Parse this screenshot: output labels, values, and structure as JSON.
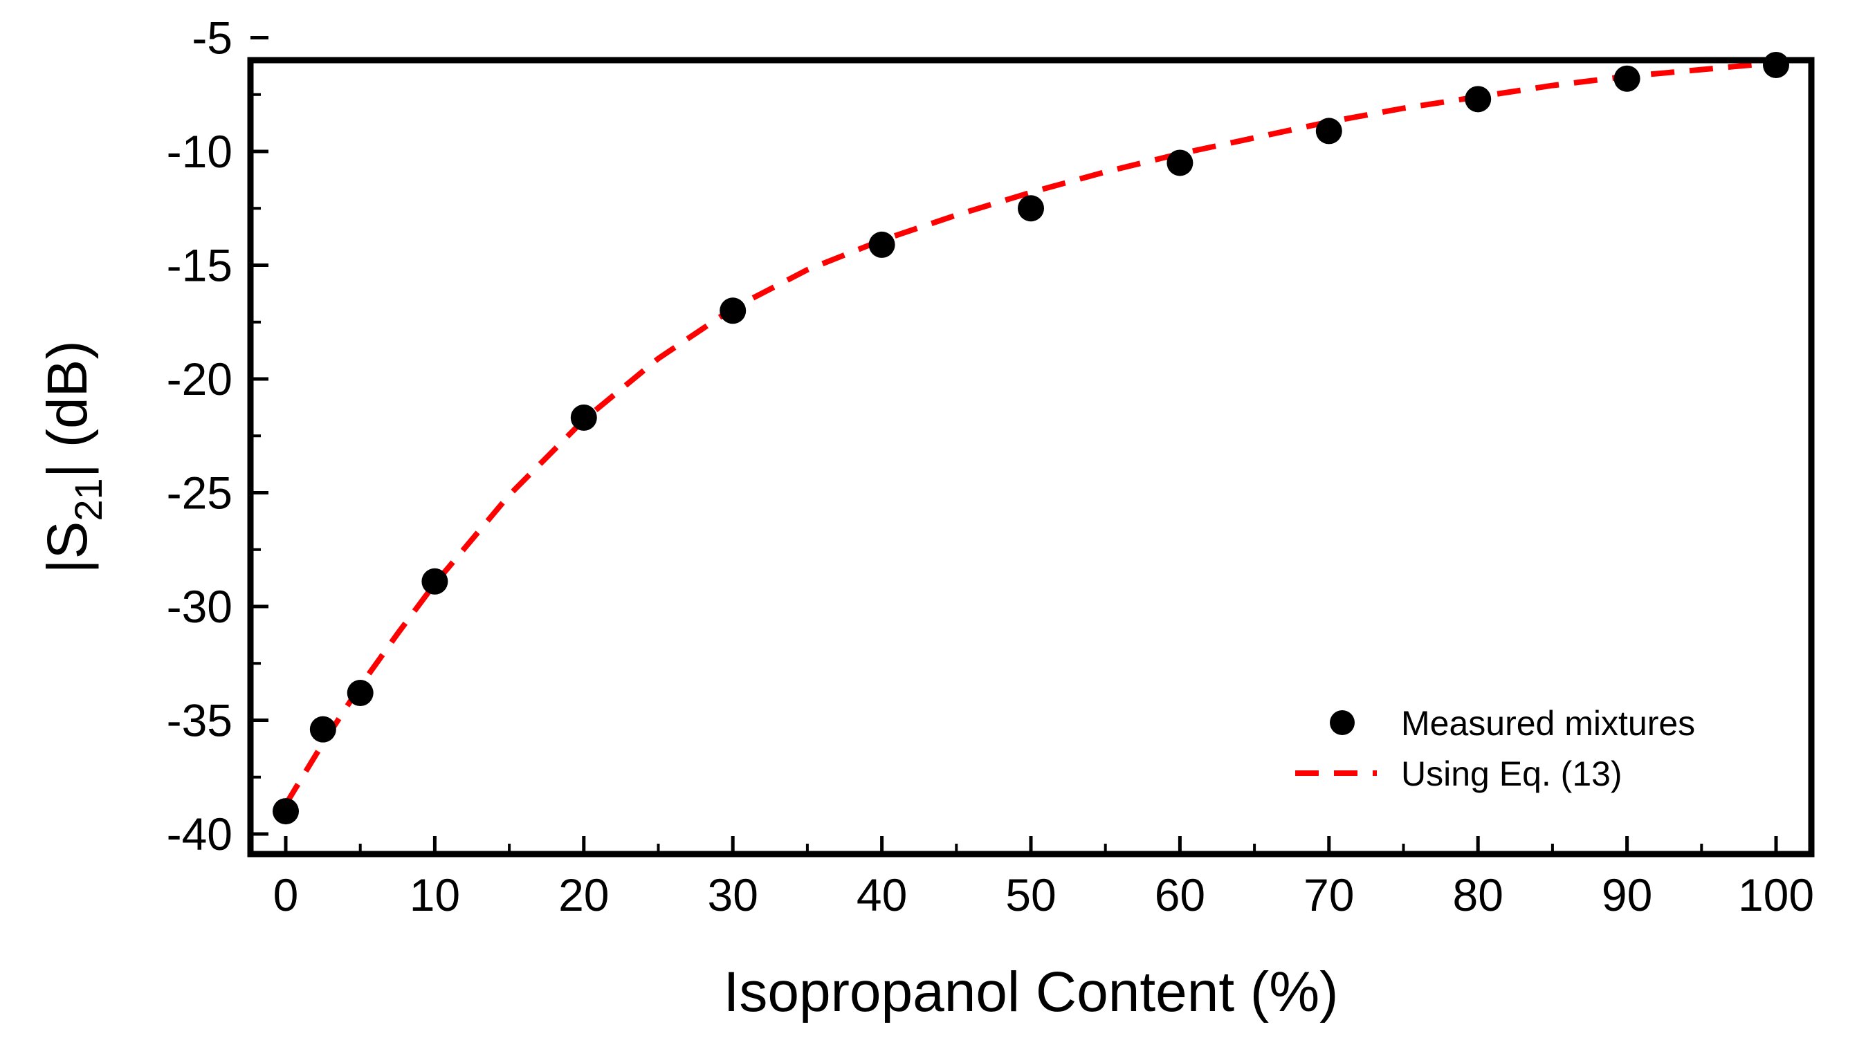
{
  "chart_data": {
    "type": "scatter",
    "title": "",
    "xlabel": "Isopropanol Content (%)",
    "ylabel": {
      "prefix": "|S",
      "subscript": "21",
      "suffix": "| (dB)"
    },
    "xlim": [
      -2.5,
      102.5
    ],
    "ylim": [
      -40,
      -5
    ],
    "xticks": [
      0,
      10,
      20,
      30,
      40,
      50,
      60,
      70,
      80,
      90,
      100
    ],
    "yticks": [
      -40,
      -35,
      -30,
      -25,
      -20,
      -15,
      -10,
      -5
    ],
    "xtick_labels": [
      "0",
      "10",
      "20",
      "30",
      "40",
      "50",
      "60",
      "70",
      "80",
      "90",
      "100"
    ],
    "ytick_labels": [
      "-40",
      "-35",
      "-30",
      "-25",
      "-20",
      "-15",
      "-10",
      "-5"
    ],
    "grid": false,
    "legend_position": "bottom-right",
    "series": [
      {
        "name": "Measured mixtures",
        "kind": "scatter",
        "color": "#000000",
        "x": [
          0,
          2.5,
          5,
          10,
          20,
          30,
          40,
          50,
          60,
          70,
          80,
          90,
          100
        ],
        "y": [
          -39.0,
          -35.4,
          -33.8,
          -28.9,
          -21.7,
          -17.0,
          -14.1,
          -12.5,
          -10.5,
          -9.1,
          -7.7,
          -6.8,
          -6.2
        ]
      },
      {
        "name": "Using Eq. (13)",
        "kind": "line",
        "style": "dashed",
        "color": "#ff0000",
        "x": [
          0,
          2.5,
          5,
          7.5,
          10,
          15,
          20,
          25,
          30,
          35,
          40,
          45,
          50,
          55,
          60,
          65,
          70,
          75,
          80,
          85,
          90,
          95,
          100
        ],
        "y": [
          -38.7,
          -36.0,
          -33.5,
          -31.2,
          -29.0,
          -25.1,
          -21.8,
          -19.1,
          -16.9,
          -15.2,
          -13.9,
          -12.8,
          -11.8,
          -10.9,
          -10.1,
          -9.4,
          -8.7,
          -8.1,
          -7.6,
          -7.1,
          -6.7,
          -6.4,
          -6.1
        ]
      }
    ]
  }
}
